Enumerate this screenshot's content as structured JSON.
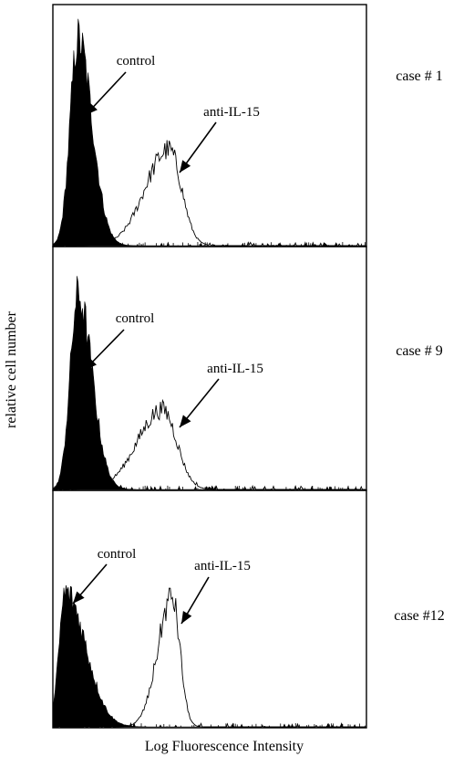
{
  "figure": {
    "ylabel": "relative cell number",
    "xlabel": "Log Fluorescence Intensity"
  },
  "chart_data": [
    {
      "type": "area",
      "case_label": "case # 1",
      "xlim": [
        0,
        100
      ],
      "ylim": [
        0,
        100
      ],
      "series": [
        {
          "name": "control",
          "fill": "#000000",
          "filled": true,
          "peak_x": 8,
          "spread_left": 2.5,
          "spread_right": 4.5,
          "peak_y": 86
        },
        {
          "name": "anti-IL-15",
          "fill": "none",
          "filled": false,
          "peak_x": 37,
          "spread_left": 7.5,
          "spread_right": 4.0,
          "peak_y": 40
        }
      ],
      "annotations": [
        {
          "text": "control",
          "series": "control"
        },
        {
          "text": "anti-IL-15",
          "series": "anti-IL-15"
        }
      ]
    },
    {
      "type": "area",
      "case_label": "case # 9",
      "xlim": [
        0,
        100
      ],
      "ylim": [
        0,
        100
      ],
      "series": [
        {
          "name": "control",
          "fill": "#000000",
          "filled": true,
          "peak_x": 8,
          "spread_left": 2.5,
          "spread_right": 4.5,
          "peak_y": 80
        },
        {
          "name": "anti-IL-15",
          "fill": "none",
          "filled": false,
          "peak_x": 35,
          "spread_left": 8.0,
          "spread_right": 4.5,
          "peak_y": 33
        }
      ],
      "annotations": [
        {
          "text": "control",
          "series": "control"
        },
        {
          "text": "anti-IL-15",
          "series": "anti-IL-15"
        }
      ]
    },
    {
      "type": "area",
      "case_label": "case #12",
      "xlim": [
        0,
        100
      ],
      "ylim": [
        0,
        100
      ],
      "series": [
        {
          "name": "control",
          "fill": "#000000",
          "filled": true,
          "peak_x": 4,
          "spread_left": 2.0,
          "spread_right": 6.5,
          "peak_y": 57
        },
        {
          "name": "anti-IL-15",
          "fill": "none",
          "filled": false,
          "peak_x": 38,
          "spread_left": 4.5,
          "spread_right": 2.5,
          "peak_y": 55
        }
      ],
      "annotations": [
        {
          "text": "control",
          "series": "control"
        },
        {
          "text": "anti-IL-15",
          "series": "anti-IL-15"
        }
      ]
    }
  ]
}
